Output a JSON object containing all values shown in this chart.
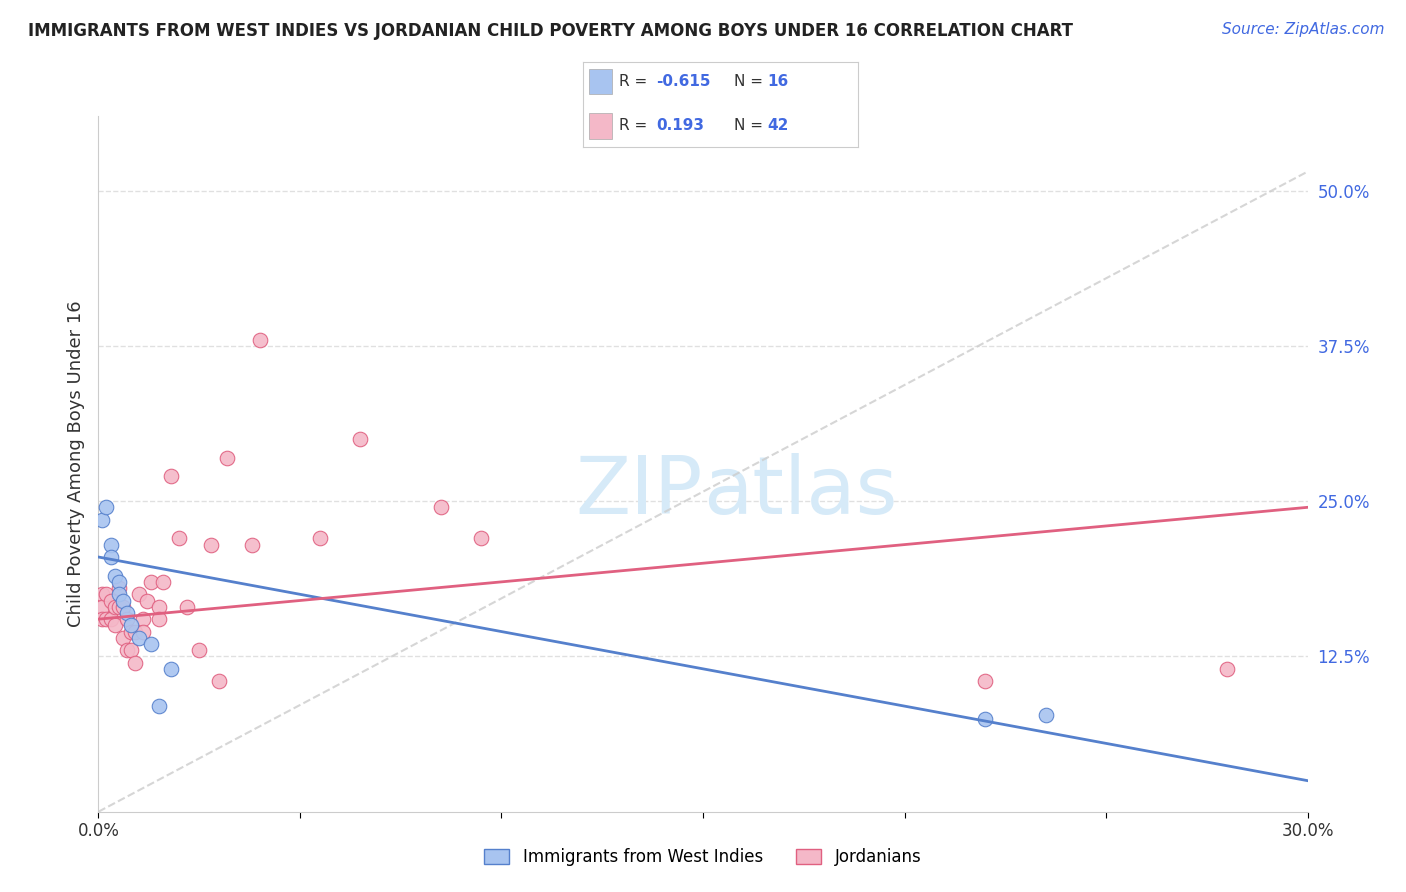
{
  "title": "IMMIGRANTS FROM WEST INDIES VS JORDANIAN CHILD POVERTY AMONG BOYS UNDER 16 CORRELATION CHART",
  "source": "Source: ZipAtlas.com",
  "ylabel": "Child Poverty Among Boys Under 16",
  "x_min": 0.0,
  "x_max": 0.3,
  "y_min": 0.0,
  "y_max": 0.56,
  "x_ticks": [
    0.0,
    0.05,
    0.1,
    0.15,
    0.2,
    0.25,
    0.3
  ],
  "x_tick_labels": [
    "0.0%",
    "",
    "",
    "",
    "",
    "",
    "30.0%"
  ],
  "y_ticks_right": [
    0.125,
    0.25,
    0.375,
    0.5
  ],
  "y_tick_labels_right": [
    "12.5%",
    "25.0%",
    "37.5%",
    "50.0%"
  ],
  "legend_label1": "Immigrants from West Indies",
  "legend_label2": "Jordanians",
  "legend_R1": "-0.615",
  "legend_N1": "16",
  "legend_R2": "0.193",
  "legend_N2": "42",
  "color_blue": "#A8C4F0",
  "color_pink": "#F4B8C8",
  "color_blue_line": "#5580CC",
  "color_pink_line": "#E06080",
  "color_dashed_line": "#CCCCCC",
  "color_title": "#222222",
  "color_source": "#4169E1",
  "color_legend_values": "#4169E1",
  "watermark_color": "#D6EAF8",
  "blue_x": [
    0.001,
    0.002,
    0.003,
    0.003,
    0.004,
    0.005,
    0.005,
    0.006,
    0.007,
    0.008,
    0.01,
    0.013,
    0.015,
    0.018,
    0.22,
    0.235
  ],
  "blue_y": [
    0.235,
    0.245,
    0.215,
    0.205,
    0.19,
    0.185,
    0.175,
    0.17,
    0.16,
    0.15,
    0.14,
    0.135,
    0.085,
    0.115,
    0.075,
    0.078
  ],
  "pink_x": [
    0.001,
    0.001,
    0.001,
    0.002,
    0.002,
    0.003,
    0.003,
    0.004,
    0.004,
    0.005,
    0.005,
    0.006,
    0.006,
    0.007,
    0.007,
    0.008,
    0.008,
    0.009,
    0.009,
    0.01,
    0.011,
    0.011,
    0.012,
    0.013,
    0.015,
    0.015,
    0.016,
    0.018,
    0.02,
    0.022,
    0.025,
    0.028,
    0.03,
    0.032,
    0.038,
    0.04,
    0.055,
    0.065,
    0.085,
    0.095,
    0.22,
    0.28
  ],
  "pink_y": [
    0.175,
    0.165,
    0.155,
    0.175,
    0.155,
    0.17,
    0.155,
    0.165,
    0.15,
    0.18,
    0.165,
    0.165,
    0.14,
    0.155,
    0.13,
    0.145,
    0.13,
    0.145,
    0.12,
    0.175,
    0.155,
    0.145,
    0.17,
    0.185,
    0.165,
    0.155,
    0.185,
    0.27,
    0.22,
    0.165,
    0.13,
    0.215,
    0.105,
    0.285,
    0.215,
    0.38,
    0.22,
    0.3,
    0.245,
    0.22,
    0.105,
    0.115
  ],
  "grid_color": "#DDDDDD",
  "blue_line_x0": 0.0,
  "blue_line_x1": 0.3,
  "blue_line_y0": 0.205,
  "blue_line_y1": 0.025,
  "pink_line_x0": 0.0,
  "pink_line_x1": 0.3,
  "pink_line_y0": 0.155,
  "pink_line_y1": 0.245
}
